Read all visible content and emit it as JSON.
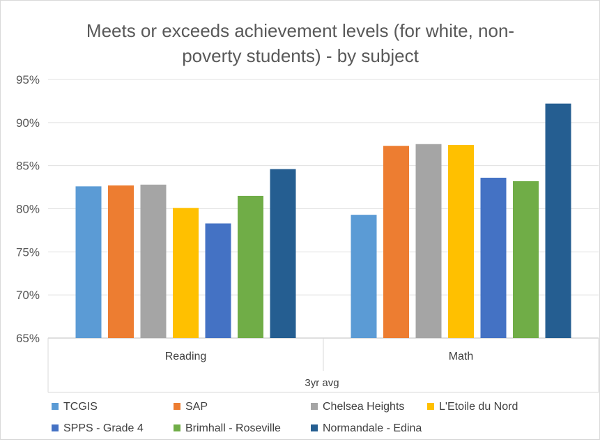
{
  "chart_data": {
    "type": "bar",
    "title_line1": "Meets or exceeds achievement levels (for white, non-",
    "title_line2": "poverty students) - by subject",
    "categories": [
      "Reading",
      "Math"
    ],
    "group_label": "3yr avg",
    "ylim": [
      65,
      95
    ],
    "y_ticks": [
      65,
      70,
      75,
      80,
      85,
      90,
      95
    ],
    "y_tick_labels": [
      "65%",
      "70%",
      "75%",
      "80%",
      "85%",
      "90%",
      "95%"
    ],
    "grid": true,
    "legend_position": "bottom",
    "series": [
      {
        "name": "TCGIS",
        "color": "#5B9BD5",
        "values": [
          82.6,
          79.3
        ]
      },
      {
        "name": "SAP",
        "color": "#ED7D31",
        "values": [
          82.7,
          87.3
        ]
      },
      {
        "name": "Chelsea Heights",
        "color": "#A5A5A5",
        "values": [
          82.8,
          87.5
        ]
      },
      {
        "name": "L'Etoile du Nord",
        "color": "#FFC000",
        "values": [
          80.1,
          87.4
        ]
      },
      {
        "name": "SPPS - Grade 4",
        "color": "#4472C4",
        "values": [
          78.3,
          83.6
        ]
      },
      {
        "name": "Brimhall - Roseville",
        "color": "#70AD47",
        "values": [
          81.5,
          83.2
        ]
      },
      {
        "name": "Normandale - Edina",
        "color": "#255E91",
        "values": [
          84.6,
          92.2
        ]
      }
    ]
  }
}
